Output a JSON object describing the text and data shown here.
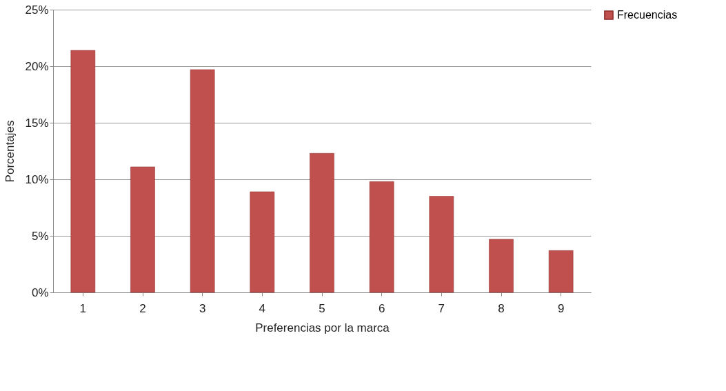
{
  "chart_data": {
    "type": "bar",
    "xlabel": "Preferencias por la marca",
    "ylabel": "Porcentajes",
    "categories": [
      "1",
      "2",
      "3",
      "4",
      "5",
      "6",
      "7",
      "8",
      "9"
    ],
    "series": [
      {
        "name": "Frecuencias",
        "color": "#c0504d",
        "values": [
          21.4,
          11.1,
          19.7,
          8.9,
          12.3,
          9.8,
          8.5,
          4.7,
          3.7
        ]
      }
    ],
    "ylim": [
      0,
      25
    ],
    "yticks": [
      {
        "value": 0,
        "label": "0%"
      },
      {
        "value": 5,
        "label": "5%"
      },
      {
        "value": 10,
        "label": "10%"
      },
      {
        "value": 15,
        "label": "15%"
      },
      {
        "value": 20,
        "label": "20%"
      },
      {
        "value": 25,
        "label": "25%"
      }
    ],
    "grid": "y",
    "legend": "right"
  }
}
